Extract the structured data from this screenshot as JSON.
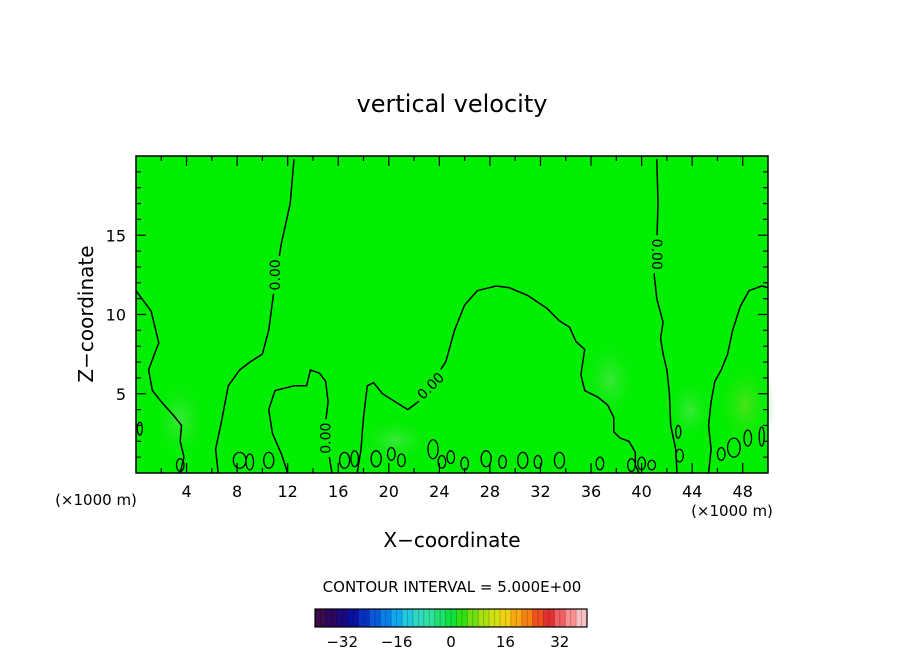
{
  "chart_data": {
    "type": "contour",
    "title": "vertical velocity",
    "xlabel": "X−coordinate",
    "ylabel": "Z−coordinate",
    "x_unit_left": "(×1000 m)",
    "x_unit_right": "(×1000 m)",
    "xlim": [
      0,
      50
    ],
    "ylim": [
      0,
      20
    ],
    "x_ticks": [
      4,
      8,
      12,
      16,
      20,
      24,
      28,
      32,
      36,
      40,
      44,
      48
    ],
    "y_ticks": [
      5,
      10,
      15
    ],
    "grid": false,
    "fill_color": "#00ee00",
    "contour_color": "#000000",
    "contour_labels": [
      {
        "text": "0.00",
        "x": 11.0,
        "z": 12.5
      },
      {
        "text": "0.00",
        "x": 15.0,
        "z": 2.2
      },
      {
        "text": "0.00",
        "x": 23.3,
        "z": 5.5
      },
      {
        "text": "0.00",
        "x": 41.2,
        "z": 13.8
      }
    ],
    "contour_lines": [
      [
        [
          0,
          11.5
        ],
        [
          1.2,
          10.2
        ],
        [
          1.8,
          8.2
        ],
        [
          1.5,
          7.6
        ],
        [
          1.0,
          6.5
        ],
        [
          1.3,
          5.2
        ],
        [
          2.0,
          4.5
        ],
        [
          3.0,
          3.6
        ],
        [
          3.6,
          3.0
        ],
        [
          3.5,
          2.0
        ],
        [
          3.8,
          1.0
        ],
        [
          3.5,
          0
        ]
      ],
      [
        [
          12.5,
          19.8
        ],
        [
          12.2,
          17.0
        ],
        [
          11.5,
          14.5
        ],
        [
          11.0,
          12.0
        ],
        [
          10.5,
          9.0
        ],
        [
          10.0,
          7.5
        ],
        [
          9.0,
          7.0
        ],
        [
          8.2,
          6.5
        ],
        [
          7.3,
          5.5
        ],
        [
          6.7,
          3.0
        ],
        [
          6.3,
          1.5
        ],
        [
          6.5,
          0
        ]
      ],
      [
        [
          12.0,
          0
        ],
        [
          11.5,
          1.2
        ],
        [
          10.8,
          2.5
        ],
        [
          10.5,
          4.0
        ],
        [
          11.0,
          5.2
        ],
        [
          12.5,
          5.5
        ],
        [
          13.5,
          5.5
        ],
        [
          13.8,
          6.5
        ],
        [
          14.5,
          6.3
        ],
        [
          15.0,
          5.8
        ],
        [
          15.2,
          4.5
        ],
        [
          15.0,
          3.2
        ],
        [
          15.2,
          1.5
        ],
        [
          15.5,
          0
        ]
      ],
      [
        [
          17.5,
          0
        ],
        [
          17.8,
          1.5
        ],
        [
          18.0,
          3.5
        ],
        [
          18.3,
          5.5
        ],
        [
          18.8,
          5.7
        ],
        [
          19.5,
          5.0
        ],
        [
          20.5,
          4.5
        ],
        [
          21.5,
          4.0
        ],
        [
          22.5,
          4.6
        ],
        [
          23.3,
          5.6
        ],
        [
          24.5,
          7.0
        ],
        [
          25.2,
          9.0
        ],
        [
          26.0,
          10.6
        ],
        [
          27.0,
          11.5
        ],
        [
          28.5,
          11.8
        ],
        [
          29.5,
          11.7
        ],
        [
          31.0,
          11.2
        ],
        [
          32.5,
          10.4
        ],
        [
          33.5,
          9.6
        ],
        [
          34.3,
          9.2
        ],
        [
          34.8,
          8.3
        ],
        [
          35.5,
          7.8
        ],
        [
          35.2,
          6.2
        ],
        [
          35.5,
          5.2
        ],
        [
          36.5,
          4.8
        ],
        [
          37.3,
          4.3
        ],
        [
          37.8,
          3.5
        ],
        [
          37.8,
          2.6
        ],
        [
          38.3,
          2.2
        ],
        [
          39.0,
          2.0
        ],
        [
          39.5,
          1.3
        ],
        [
          39.5,
          0.5
        ],
        [
          39.8,
          0
        ]
      ],
      [
        [
          41.2,
          19.8
        ],
        [
          41.3,
          17.0
        ],
        [
          41.2,
          14.5
        ],
        [
          41.0,
          12.5
        ],
        [
          41.2,
          11.0
        ],
        [
          41.7,
          9.5
        ],
        [
          41.5,
          8.5
        ],
        [
          41.7,
          7.5
        ],
        [
          42.0,
          6.5
        ],
        [
          42.2,
          5.0
        ],
        [
          42.3,
          3.0
        ],
        [
          42.7,
          1.5
        ],
        [
          42.8,
          0
        ]
      ],
      [
        [
          50,
          11.7
        ],
        [
          49.5,
          11.8
        ],
        [
          48.5,
          11.5
        ],
        [
          47.8,
          10.5
        ],
        [
          47.2,
          9.0
        ],
        [
          46.8,
          7.5
        ],
        [
          46.3,
          6.5
        ],
        [
          45.8,
          5.8
        ],
        [
          45.5,
          4.5
        ],
        [
          45.3,
          3.0
        ],
        [
          45.5,
          1.5
        ],
        [
          45.3,
          0
        ]
      ]
    ],
    "small_contours": [
      {
        "x": 0.3,
        "z": 2.8,
        "rx": 0.2,
        "rz": 0.4
      },
      {
        "x": 3.5,
        "z": 0.5,
        "rx": 0.3,
        "rz": 0.4
      },
      {
        "x": 8.2,
        "z": 0.8,
        "rx": 0.5,
        "rz": 0.5
      },
      {
        "x": 9.0,
        "z": 0.7,
        "rx": 0.3,
        "rz": 0.5
      },
      {
        "x": 10.5,
        "z": 0.8,
        "rx": 0.4,
        "rz": 0.5
      },
      {
        "x": 16.5,
        "z": 0.8,
        "rx": 0.4,
        "rz": 0.5
      },
      {
        "x": 17.3,
        "z": 0.9,
        "rx": 0.3,
        "rz": 0.5
      },
      {
        "x": 19.0,
        "z": 0.9,
        "rx": 0.4,
        "rz": 0.5
      },
      {
        "x": 20.2,
        "z": 1.2,
        "rx": 0.3,
        "rz": 0.4
      },
      {
        "x": 21.0,
        "z": 0.8,
        "rx": 0.3,
        "rz": 0.4
      },
      {
        "x": 23.5,
        "z": 1.5,
        "rx": 0.4,
        "rz": 0.6
      },
      {
        "x": 24.2,
        "z": 0.7,
        "rx": 0.3,
        "rz": 0.4
      },
      {
        "x": 24.9,
        "z": 1.0,
        "rx": 0.3,
        "rz": 0.4
      },
      {
        "x": 26.0,
        "z": 0.6,
        "rx": 0.3,
        "rz": 0.4
      },
      {
        "x": 27.7,
        "z": 0.9,
        "rx": 0.4,
        "rz": 0.5
      },
      {
        "x": 29.0,
        "z": 0.7,
        "rx": 0.3,
        "rz": 0.4
      },
      {
        "x": 30.6,
        "z": 0.8,
        "rx": 0.4,
        "rz": 0.5
      },
      {
        "x": 31.8,
        "z": 0.7,
        "rx": 0.3,
        "rz": 0.4
      },
      {
        "x": 33.5,
        "z": 0.8,
        "rx": 0.4,
        "rz": 0.5
      },
      {
        "x": 36.7,
        "z": 0.6,
        "rx": 0.3,
        "rz": 0.4
      },
      {
        "x": 39.2,
        "z": 0.5,
        "rx": 0.3,
        "rz": 0.4
      },
      {
        "x": 40.0,
        "z": 0.6,
        "rx": 0.3,
        "rz": 0.4
      },
      {
        "x": 40.8,
        "z": 0.5,
        "rx": 0.3,
        "rz": 0.3
      },
      {
        "x": 43.0,
        "z": 1.1,
        "rx": 0.3,
        "rz": 0.4
      },
      {
        "x": 42.9,
        "z": 2.6,
        "rx": 0.2,
        "rz": 0.4
      },
      {
        "x": 46.3,
        "z": 1.2,
        "rx": 0.3,
        "rz": 0.4
      },
      {
        "x": 47.3,
        "z": 1.6,
        "rx": 0.5,
        "rz": 0.6
      },
      {
        "x": 48.4,
        "z": 2.2,
        "rx": 0.3,
        "rz": 0.5
      },
      {
        "x": 49.5,
        "z": 2.3,
        "rx": 0.2,
        "rz": 0.6
      }
    ],
    "colorbar": {
      "title": "CONTOUR INTERVAL = 5.000E+00",
      "ticks": [
        -32,
        -16,
        0,
        16,
        32
      ],
      "range": [
        -40,
        40
      ],
      "colors": [
        "#3a0a4a",
        "#2a0860",
        "#1a0a80",
        "#0a10a0",
        "#0830c0",
        "#0858d8",
        "#0a80e8",
        "#10a8f0",
        "#20c8e0",
        "#30d8c0",
        "#30e0a0",
        "#20e070",
        "#10e040",
        "#30e010",
        "#70e010",
        "#a8e010",
        "#d0e010",
        "#f0d010",
        "#f8a810",
        "#f88010",
        "#f05020",
        "#e03030",
        "#f06060",
        "#f89090",
        "#f8c0c0"
      ]
    }
  }
}
